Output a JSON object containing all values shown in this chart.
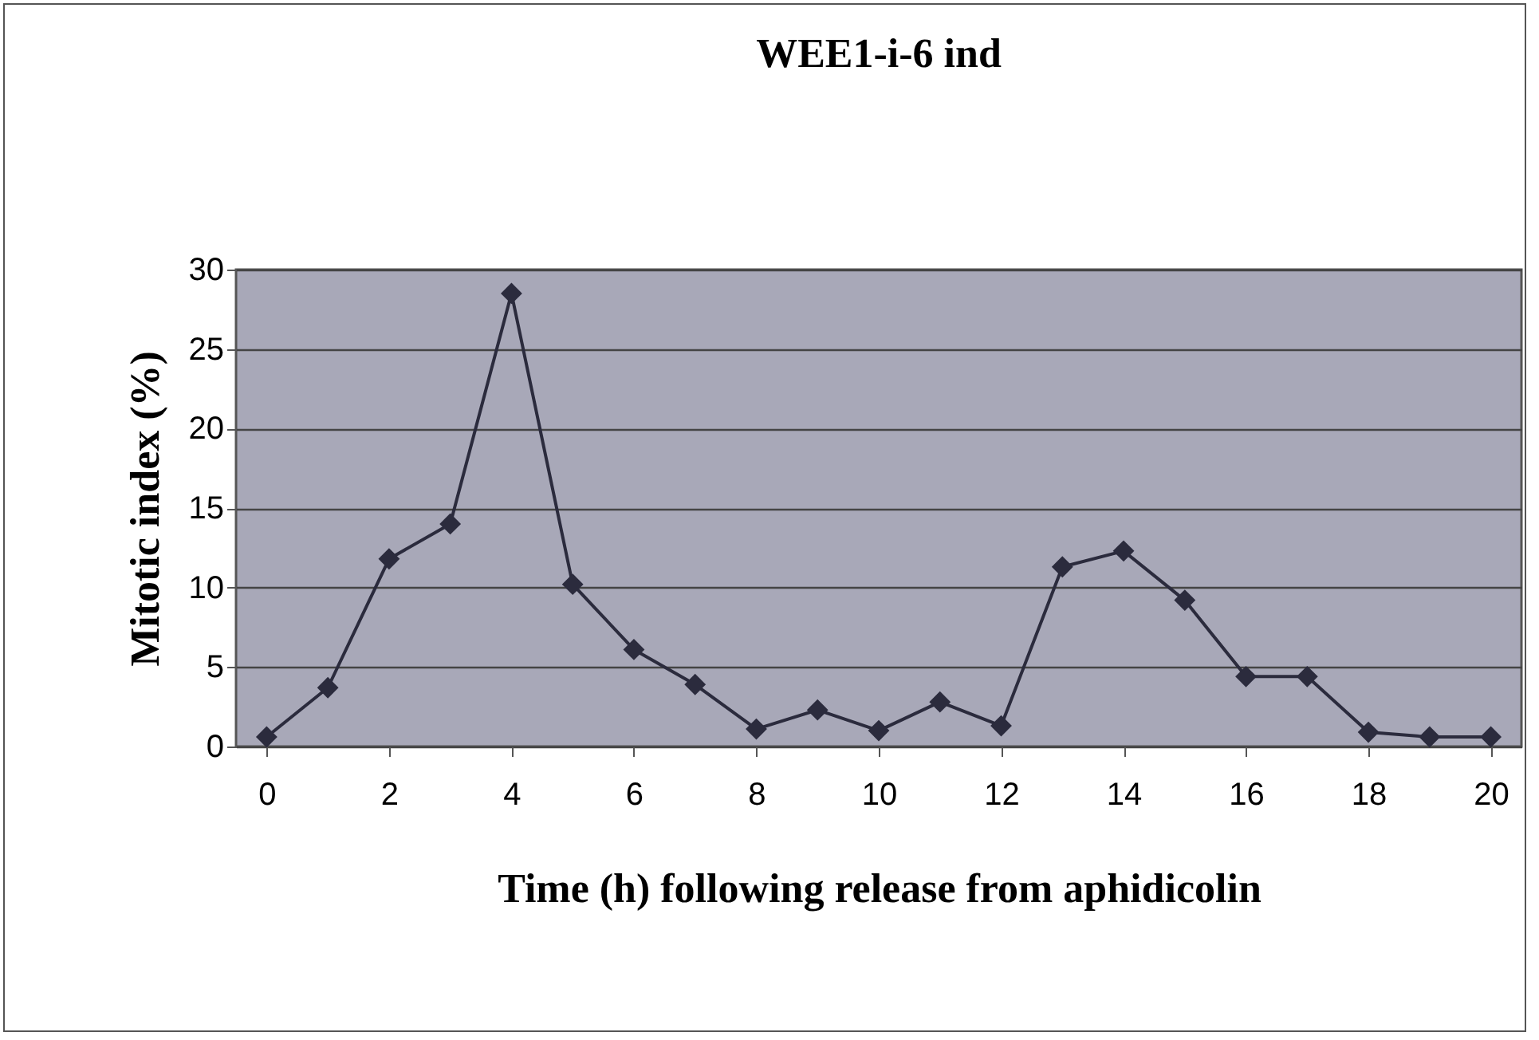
{
  "chart_data": {
    "type": "line",
    "title": "WEE1-i-6 ind",
    "xlabel": "Time (h) following release from aphidicolin",
    "ylabel": "Mitotic index (%)",
    "x": [
      0,
      1,
      2,
      3,
      4,
      5,
      6,
      7,
      8,
      9,
      10,
      11,
      12,
      13,
      14,
      15,
      16,
      17,
      18,
      19,
      20
    ],
    "values": [
      0.6,
      3.7,
      11.8,
      14,
      28.5,
      10.2,
      6.1,
      3.9,
      1.1,
      2.3,
      1.0,
      2.8,
      1.3,
      11.3,
      12.3,
      9.2,
      4.4,
      4.4,
      0.9,
      0.6,
      0.6
    ],
    "color": "#2b2b3d",
    "xlim": [
      -0.5,
      20.5
    ],
    "xticks": [
      0,
      2,
      4,
      6,
      8,
      10,
      12,
      14,
      16,
      18,
      20
    ],
    "ylim": [
      0,
      30
    ],
    "yticks": [
      0,
      5,
      10,
      15,
      20,
      25,
      30
    ],
    "grid": "y",
    "marker": "diamond",
    "line_style": "solid"
  }
}
